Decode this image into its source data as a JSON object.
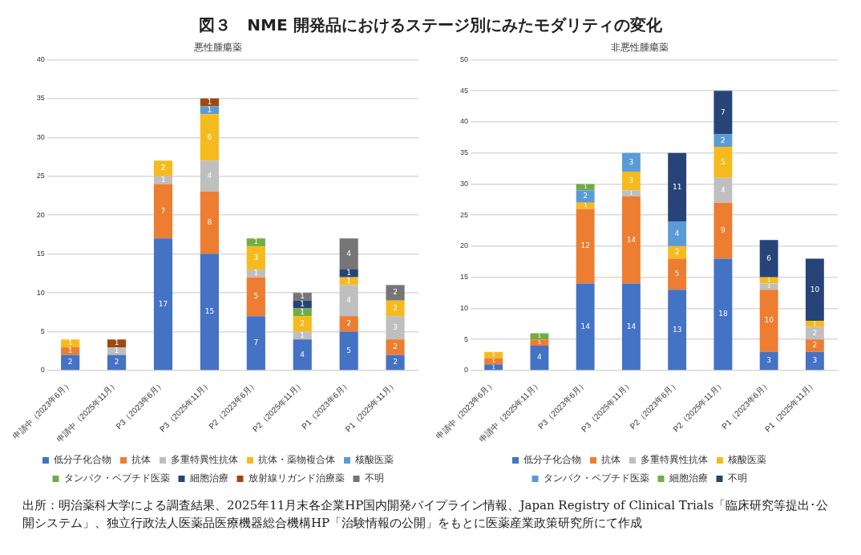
{
  "chart_data": [
    {
      "type": "bar",
      "title": "図３　NME 開発品におけるステージ別にみたモダリティの変化",
      "subtitle": "悪性腫瘍薬",
      "stacked": true,
      "data_labels": true,
      "grid": "y",
      "legend": "bottom",
      "categories": [
        "申請中（2023年6月）",
        "申請中（2025年11月）",
        "P3（2023年6月）",
        "P3（2025年11月）",
        "P2（2023年6月）",
        "P2（2025年11月）",
        "P1（2023年6月）",
        "P1（2025年11月）"
      ],
      "ylim": [
        0,
        40
      ],
      "yticks": [
        0,
        5,
        10,
        15,
        20,
        25,
        30,
        35,
        40
      ],
      "series": [
        {
          "name": "低分子化合物",
          "color": "#4472c4",
          "values": [
            2,
            2,
            17,
            15,
            7,
            4,
            5,
            2
          ]
        },
        {
          "name": "抗体",
          "color": "#ed7d31",
          "values": [
            1,
            null,
            7,
            8,
            5,
            null,
            2,
            2
          ]
        },
        {
          "name": "多重特異性抗体",
          "color": "#bfbfbf",
          "values": [
            null,
            1,
            1,
            4,
            1,
            1,
            4,
            3
          ]
        },
        {
          "name": "抗体・薬物複合体",
          "color": "#f5bb1e",
          "values": [
            1,
            null,
            2,
            6,
            3,
            2,
            1,
            2
          ]
        },
        {
          "name": "核酸医薬",
          "color": "#5b9bd5",
          "values": [
            null,
            null,
            null,
            1,
            null,
            null,
            null,
            null
          ]
        },
        {
          "name": "タンパク・ペプチド医薬",
          "color": "#70ad47",
          "values": [
            null,
            null,
            null,
            null,
            1,
            1,
            null,
            null
          ]
        },
        {
          "name": "細胞治療",
          "color": "#264478",
          "values": [
            null,
            null,
            null,
            null,
            null,
            1,
            1,
            null
          ]
        },
        {
          "name": "放射線リガンド治療薬",
          "color": "#9e480e",
          "values": [
            null,
            1,
            null,
            1,
            null,
            null,
            null,
            null
          ]
        },
        {
          "name": "不明",
          "color": "#767676",
          "values": [
            null,
            null,
            null,
            null,
            null,
            1,
            4,
            2
          ]
        }
      ],
      "annotations": [
        "出所：明治薬科大学による調査結果、2025年11月末各企業HP国内開発パイプライン情報、Japan Registry of Clinical Trials「臨床研究等提出･公開システム」、独立行政法人医薬品医療機器総合機構HP「治験情報の公開」をもとに医薬産業政策研究所にて作成"
      ]
    },
    {
      "type": "bar",
      "subtitle": "非悪性腫瘍薬",
      "stacked": true,
      "data_labels": true,
      "grid": "y",
      "legend": "bottom",
      "categories": [
        "申請中（2023年6月）",
        "申請中（2025年11月）",
        "P3（2023年6月）",
        "P3（2025年11月）",
        "P2（2023年6月）",
        "P2（2025年11月）",
        "P1（2023年6月）",
        "P1（2025年11月）"
      ],
      "ylim": [
        0,
        50
      ],
      "yticks": [
        0,
        5,
        10,
        15,
        20,
        25,
        30,
        35,
        40,
        45,
        50
      ],
      "series": [
        {
          "name": "低分子化合物",
          "color": "#4472c4",
          "values": [
            1,
            4,
            14,
            14,
            13,
            18,
            3,
            3
          ]
        },
        {
          "name": "抗体",
          "color": "#ed7d31",
          "values": [
            1,
            1,
            12,
            14,
            5,
            9,
            10,
            2
          ]
        },
        {
          "name": "多重特異性抗体",
          "color": "#bfbfbf",
          "values": [
            null,
            null,
            null,
            1,
            null,
            4,
            1,
            2
          ]
        },
        {
          "name": "核酸医薬",
          "color": "#f5bb1e",
          "values": [
            1,
            null,
            1,
            3,
            2,
            5,
            1,
            1
          ]
        },
        {
          "name": "タンパク・ペプチド医薬",
          "color": "#5b9bd5",
          "values": [
            null,
            null,
            2,
            3,
            4,
            2,
            null,
            null
          ]
        },
        {
          "name": "細胞治療",
          "color": "#70ad47",
          "values": [
            null,
            1,
            1,
            null,
            null,
            null,
            null,
            null
          ]
        },
        {
          "name": "不明",
          "color": "#264478",
          "values": [
            null,
            null,
            null,
            null,
            11,
            7,
            6,
            10
          ]
        }
      ]
    }
  ]
}
